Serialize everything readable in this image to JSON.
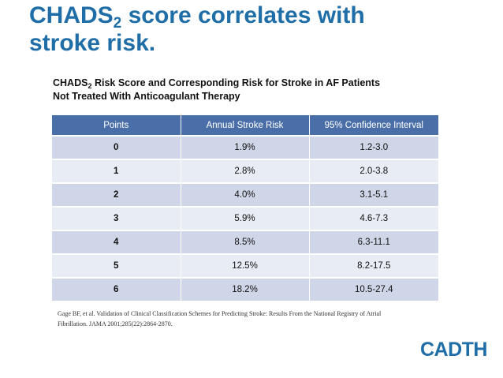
{
  "slide": {
    "title_main": "CHADS",
    "title_sub": "2",
    "title_rest": " score correlates with",
    "title_line2": "stroke risk."
  },
  "caption": {
    "part1": "CHADS",
    "sub": "2",
    "part2": " Risk Score and Corresponding Risk for Stroke in AF Patients",
    "line2": "Not Treated With Anticoagulant Therapy"
  },
  "table": {
    "headers": [
      "Points",
      "Annual Stroke Risk",
      "95% Confidence Interval"
    ],
    "rows": [
      [
        "0",
        "1.9%",
        "1.2-3.0"
      ],
      [
        "1",
        "2.8%",
        "2.0-3.8"
      ],
      [
        "2",
        "4.0%",
        "3.1-5.1"
      ],
      [
        "3",
        "5.9%",
        "4.6-7.3"
      ],
      [
        "4",
        "8.5%",
        "6.3-11.1"
      ],
      [
        "5",
        "12.5%",
        "8.2-17.5"
      ],
      [
        "6",
        "18.2%",
        "10.5-27.4"
      ]
    ]
  },
  "reference": {
    "line1": "Gage BF, et al. Validation of Clinical Classification Schemes for Predicting Stroke: Results From the National Registry of Atrial",
    "line2": "Fibrillation. JAMA 2001;285(22):2864-2870."
  },
  "logo": {
    "text": "CADTH"
  }
}
